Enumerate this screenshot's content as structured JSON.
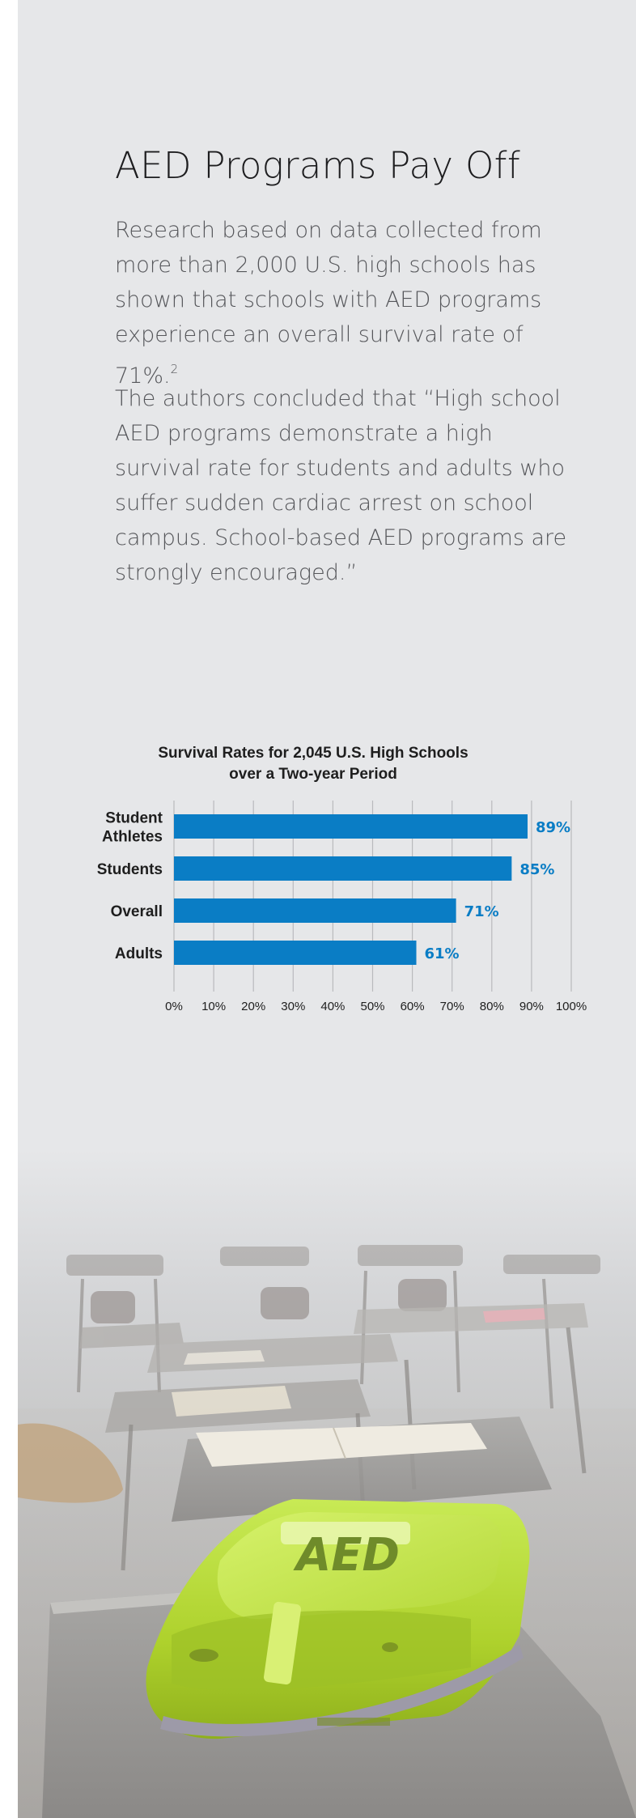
{
  "heading": "AED Programs Pay Off",
  "paragraphs": {
    "p1": "Research based on data collected from more than 2,000 U.S. high schools has shown that schools with AED programs experience an overall survival rate of 71%.",
    "p1_footnote": "2",
    "p2": "The authors concluded that “High school AED programs demonstrate a high survival rate for students and adults who suffer sudden cardiac arrest on school campus. School-based AED programs are strongly encouraged.”"
  },
  "photo": {
    "device_label": "AED"
  },
  "colors": {
    "bar": "#0a7dc5",
    "value_label": "#0a7dc5",
    "background": "#e6e7e9",
    "grid": "#b9babd"
  },
  "chart_data": {
    "type": "bar",
    "orientation": "horizontal",
    "title_lines": [
      "Survival Rates for 2,045 U.S. High Schools",
      "over a Two-year Period"
    ],
    "categories": [
      [
        "Student",
        "Athletes"
      ],
      [
        "Students"
      ],
      [
        "Overall"
      ],
      [
        "Adults"
      ]
    ],
    "values": [
      89,
      85,
      71,
      61
    ],
    "value_labels": [
      "89%",
      "85%",
      "71%",
      "61%"
    ],
    "xlim": [
      0,
      100
    ],
    "ticks": [
      0,
      10,
      20,
      30,
      40,
      50,
      60,
      70,
      80,
      90,
      100
    ],
    "tick_labels": [
      "0%",
      "10%",
      "20%",
      "30%",
      "40%",
      "50%",
      "60%",
      "70%",
      "80%",
      "90%",
      "100%"
    ],
    "grid": true,
    "legend": "none"
  }
}
